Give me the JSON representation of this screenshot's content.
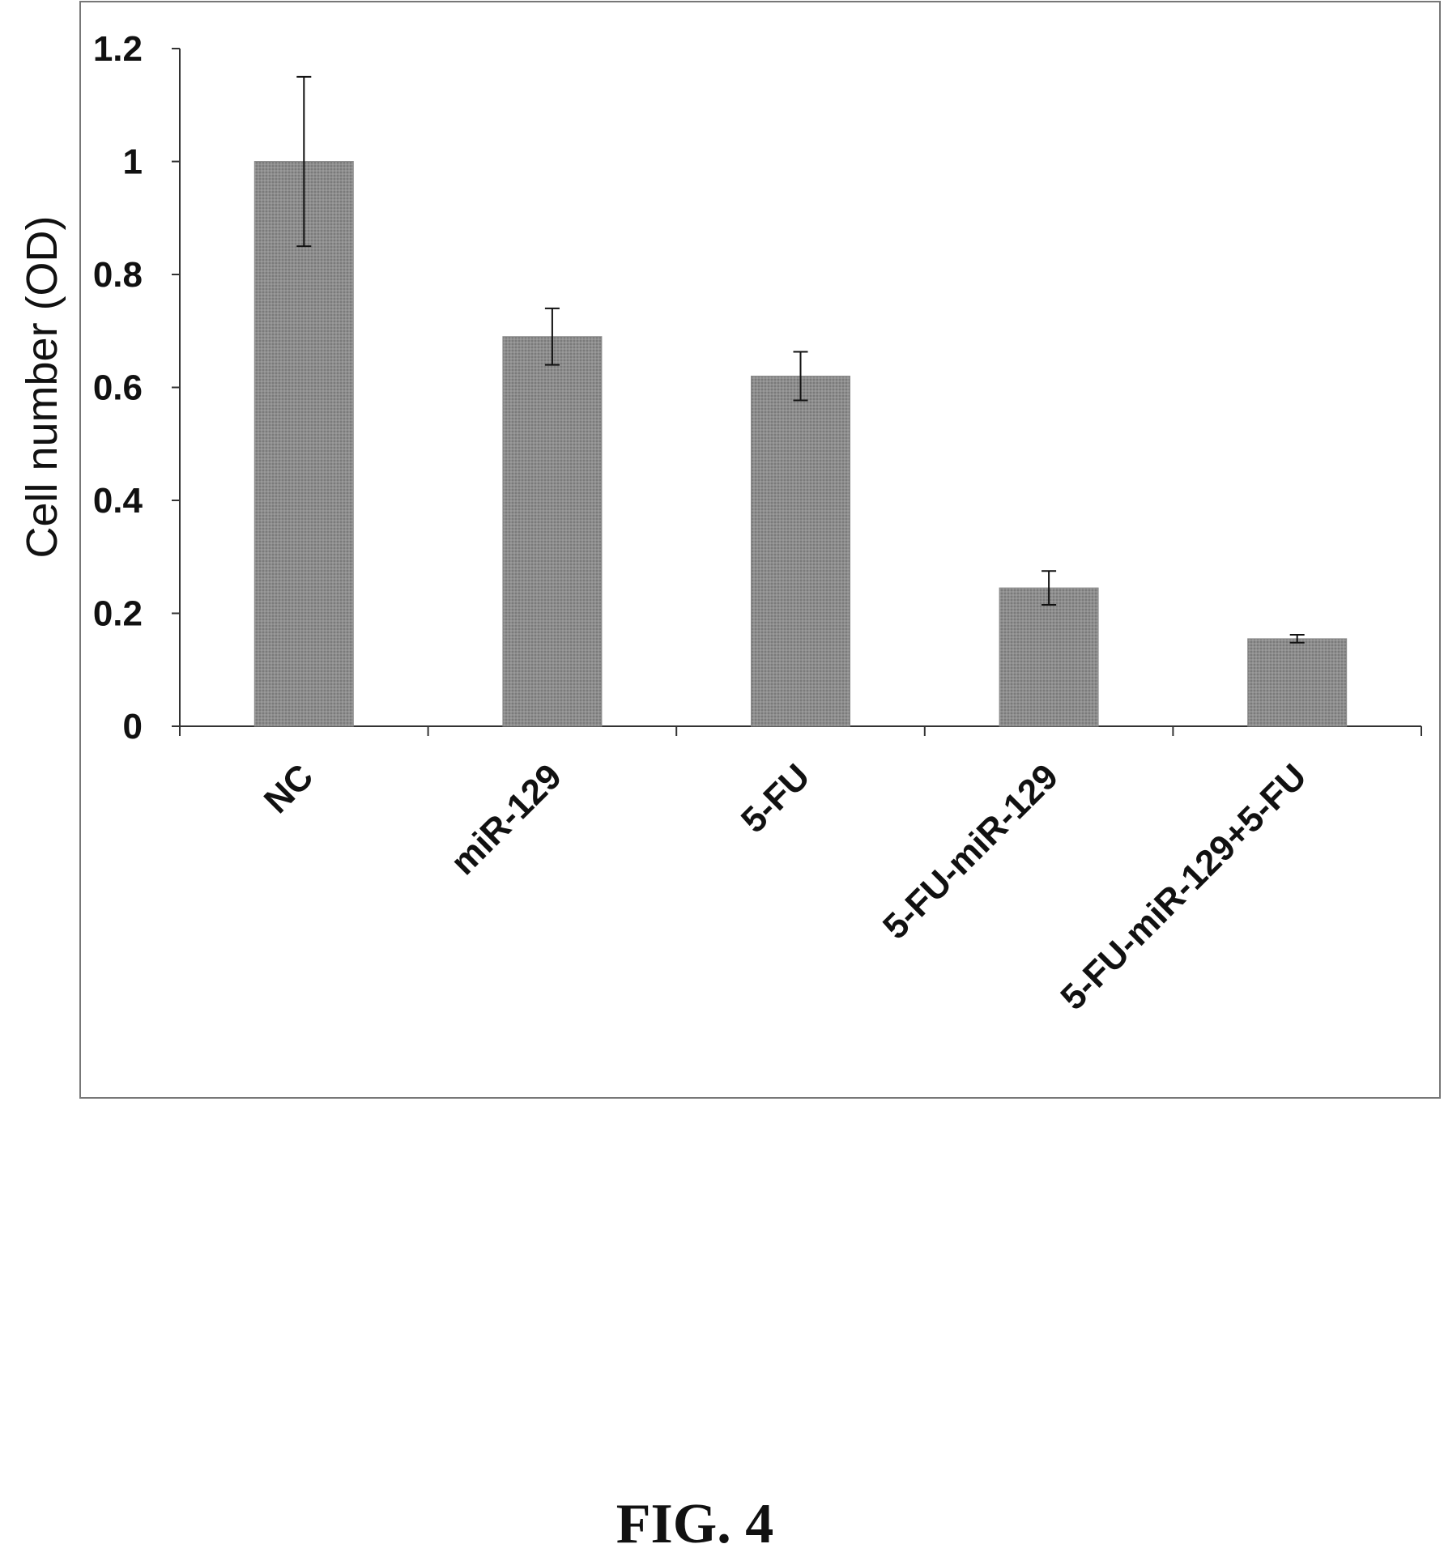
{
  "chart_data": {
    "type": "bar",
    "categories": [
      "NC",
      "miR-129",
      "5-FU",
      "5-FU-miR-129",
      "5-FU-miR-129+5-FU"
    ],
    "values": [
      1.0,
      0.69,
      0.62,
      0.245,
      0.155
    ],
    "error": [
      0.15,
      0.05,
      0.043,
      0.03,
      0.007
    ],
    "ylabel": "Cell number (OD)",
    "xlabel": "",
    "ylim": [
      0,
      1.2
    ],
    "yticks": [
      "0",
      "0.2",
      "0.4",
      "0.6",
      "0.8",
      "1",
      "1.2"
    ],
    "ytick_values": [
      0,
      0.2,
      0.4,
      0.6,
      0.8,
      1.0,
      1.2
    ],
    "grid": false,
    "bar_color": "#8a8a8a",
    "legend": "none"
  },
  "figure": {
    "caption": "FIG. 4"
  }
}
